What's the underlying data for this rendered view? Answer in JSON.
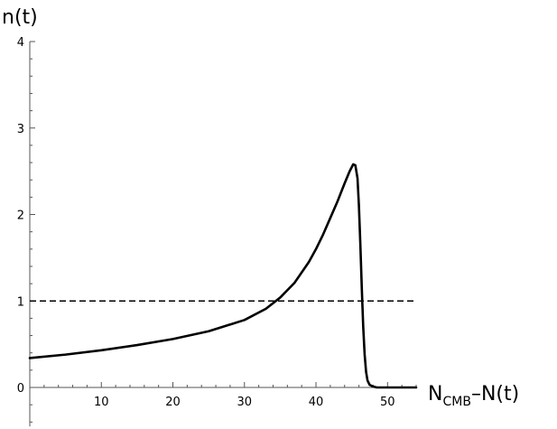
{
  "chart_data": {
    "type": "line",
    "title": "",
    "ylabel": "n(t)",
    "xlabel": {
      "main": "N",
      "sub": "CMB",
      "rest": "–N(t)"
    },
    "xlim": [
      0,
      54
    ],
    "ylim": [
      -0.45,
      4.0
    ],
    "xticks": [
      10,
      20,
      30,
      40,
      50
    ],
    "yticks": [
      0,
      1,
      2,
      3,
      4
    ],
    "grid": false,
    "series": [
      {
        "style": "solid",
        "color": "#000000",
        "x": [
          0,
          5,
          10,
          15,
          20,
          25,
          30,
          33,
          35,
          37,
          39,
          40,
          41,
          42,
          43,
          44,
          44.7,
          45.2,
          45.5,
          45.8,
          46.0,
          46.2,
          46.4,
          46.6,
          46.8,
          47.0,
          47.2,
          47.5,
          48.0,
          48.5,
          49.0,
          50.0,
          52.0,
          54.0
        ],
        "y": [
          0.34,
          0.38,
          0.43,
          0.49,
          0.56,
          0.65,
          0.78,
          0.91,
          1.04,
          1.21,
          1.45,
          1.6,
          1.77,
          1.96,
          2.15,
          2.36,
          2.5,
          2.58,
          2.57,
          2.42,
          2.1,
          1.65,
          1.15,
          0.7,
          0.38,
          0.18,
          0.08,
          0.03,
          0.01,
          0.0,
          0.0,
          0.0,
          0.0,
          0.0
        ]
      },
      {
        "style": "dashed",
        "color": "#000000",
        "x": [
          0,
          54
        ],
        "y": [
          1,
          1
        ]
      }
    ]
  }
}
